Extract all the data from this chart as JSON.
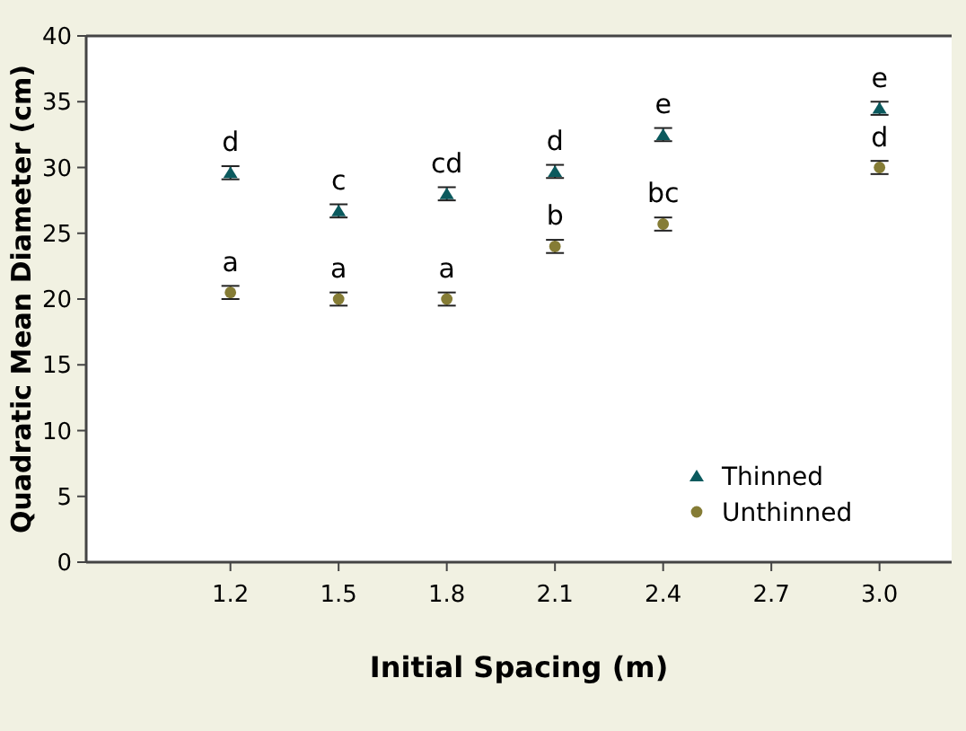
{
  "chart_data": {
    "type": "scatter",
    "xlabel": "Initial Spacing (m)",
    "ylabel": "Quadratic Mean Diameter (cm)",
    "x": [
      1.2,
      1.5,
      1.8,
      2.1,
      2.4,
      3.0
    ],
    "series": [
      {
        "name": "Thinned",
        "color": "#0b5a5e",
        "marker": "triangle",
        "values": [
          29.6,
          26.7,
          28.0,
          29.7,
          32.5,
          34.5
        ],
        "errors": [
          0.5,
          0.5,
          0.5,
          0.5,
          0.5,
          0.5
        ]
      },
      {
        "name": "Unthinned",
        "color": "#857c35",
        "marker": "circle",
        "values": [
          20.5,
          20.0,
          20.0,
          24.0,
          25.7,
          30.0
        ],
        "errors": [
          0.5,
          0.5,
          0.5,
          0.5,
          0.5,
          0.5
        ]
      }
    ],
    "xlim": [
      0.8,
      3.2
    ],
    "xticks": [
      1.2,
      1.5,
      1.8,
      2.1,
      2.4,
      2.7,
      {
        "value": 3,
        "label": "3.0"
      }
    ],
    "ylim": [
      0,
      40
    ],
    "yticks": [
      0,
      5,
      10,
      15,
      20,
      25,
      30,
      35,
      40
    ],
    "legend": "bottom right",
    "grid": false,
    "annotations": [
      {
        "text": "d",
        "x": 1.2,
        "y": 29.6
      },
      {
        "text": "c",
        "x": 1.5,
        "y": 26.7
      },
      {
        "text": "cd",
        "x": 1.8,
        "y": 28.0
      },
      {
        "text": "d",
        "x": 2.1,
        "y": 29.7
      },
      {
        "text": "e",
        "x": 2.4,
        "y": 32.5
      },
      {
        "text": "e",
        "x": 3.0,
        "y": 34.5
      },
      {
        "text": "a",
        "x": 1.2,
        "y": 20.5
      },
      {
        "text": "a",
        "x": 1.5,
        "y": 20.0
      },
      {
        "text": "a",
        "x": 1.8,
        "y": 20.0
      },
      {
        "text": "b",
        "x": 2.1,
        "y": 24.0
      },
      {
        "text": "bc",
        "x": 2.4,
        "y": 25.7
      },
      {
        "text": "d",
        "x": 3.0,
        "y": 30.0
      }
    ]
  }
}
